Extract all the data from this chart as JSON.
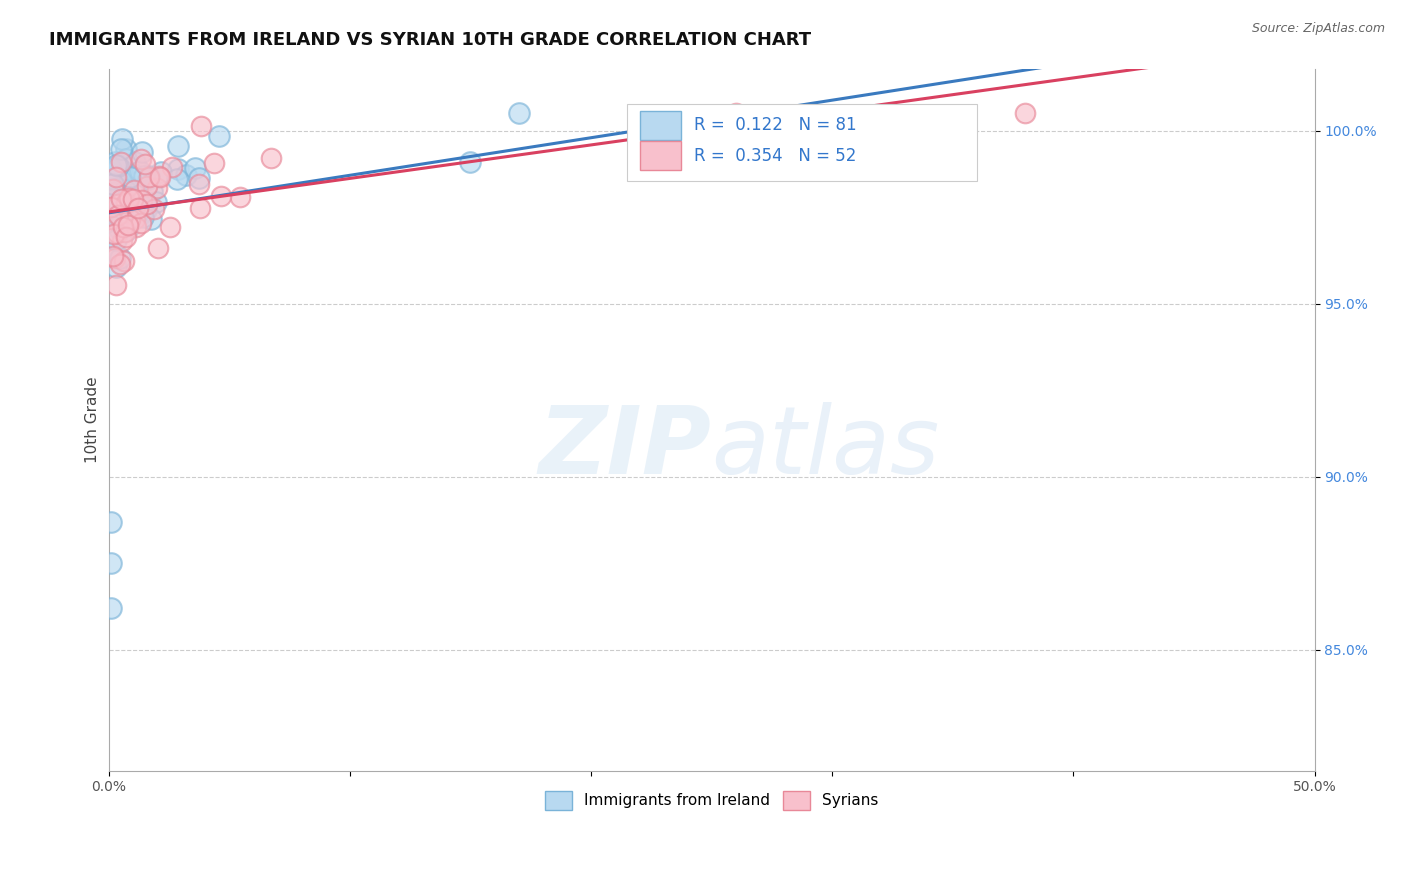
{
  "title": "IMMIGRANTS FROM IRELAND VS SYRIAN 10TH GRADE CORRELATION CHART",
  "source": "Source: ZipAtlas.com",
  "ylabel": "10th Grade",
  "xmin": 0.0,
  "xmax": 0.5,
  "ymin": 0.815,
  "ymax": 1.018,
  "yticks": [
    0.85,
    0.9,
    0.95,
    1.0
  ],
  "ytick_labels": [
    "85.0%",
    "90.0%",
    "95.0%",
    "100.0%"
  ],
  "xticks": [
    0.0,
    0.1,
    0.2,
    0.3,
    0.4,
    0.5
  ],
  "xtick_labels": [
    "0.0%",
    "",
    "",
    "",
    "",
    "50.0%"
  ],
  "ireland_R": 0.122,
  "ireland_N": 81,
  "syrian_R": 0.354,
  "syrian_N": 52,
  "ireland_face_color": "#b8d9f0",
  "ireland_edge_color": "#7ab3d8",
  "syrian_face_color": "#f8c0cc",
  "syrian_edge_color": "#e88898",
  "ireland_line_color": "#3a7abf",
  "syrian_line_color": "#d94060",
  "legend_ireland": "Immigrants from Ireland",
  "legend_syrian": "Syrians",
  "title_fontsize": 13,
  "tick_fontsize": 10,
  "legend_fontsize": 11,
  "corr_legend_fontsize": 12,
  "ylabel_fontsize": 11,
  "watermark_color": "#d8e8f5"
}
